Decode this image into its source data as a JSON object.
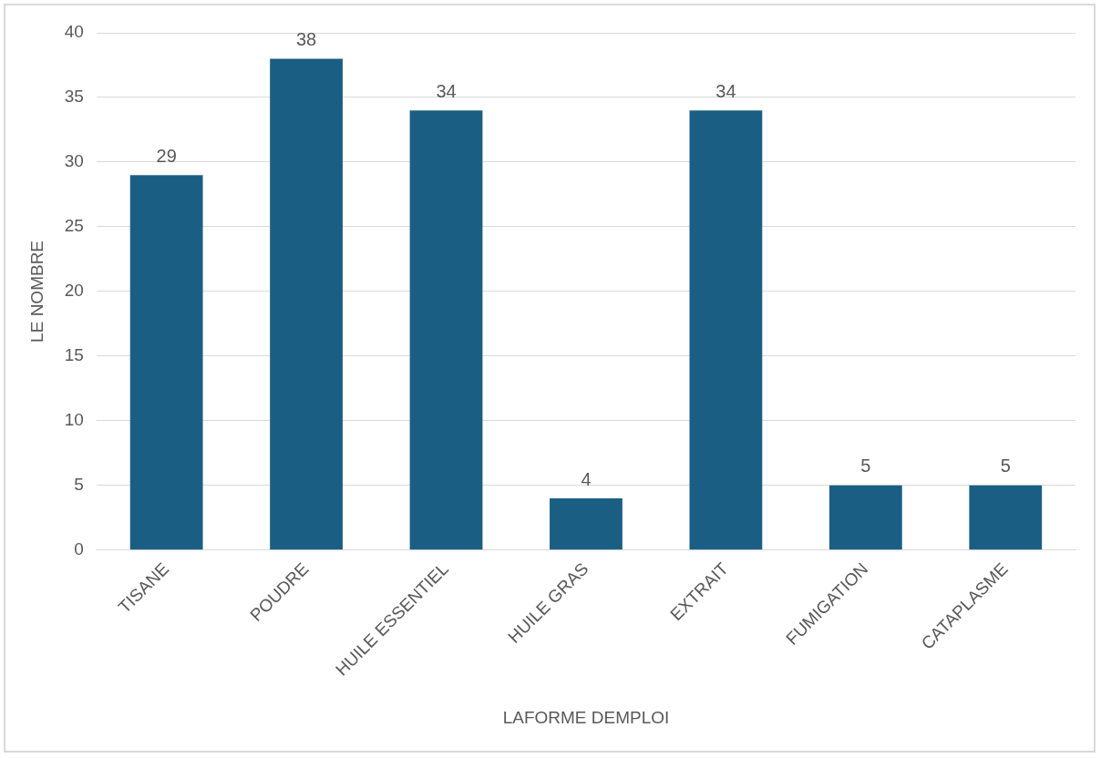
{
  "chart_data": {
    "type": "bar",
    "xlabel": "LAFORME DEMPLOI",
    "ylabel": "LE NOMBRE",
    "categories": [
      "TISANE",
      "POUDRE",
      "HUILE ESSENTIEL",
      "HUILE GRAS",
      "EXTRAIT",
      "FUMIGATION",
      "CATAPLASME"
    ],
    "values": [
      29,
      38,
      34,
      4,
      34,
      5,
      5
    ],
    "color": "#1b5e84",
    "ylim": [
      0,
      40
    ],
    "yticks": [
      0,
      5,
      10,
      15,
      20,
      25,
      30,
      35,
      40
    ],
    "grid": "y",
    "data_labels": true
  }
}
